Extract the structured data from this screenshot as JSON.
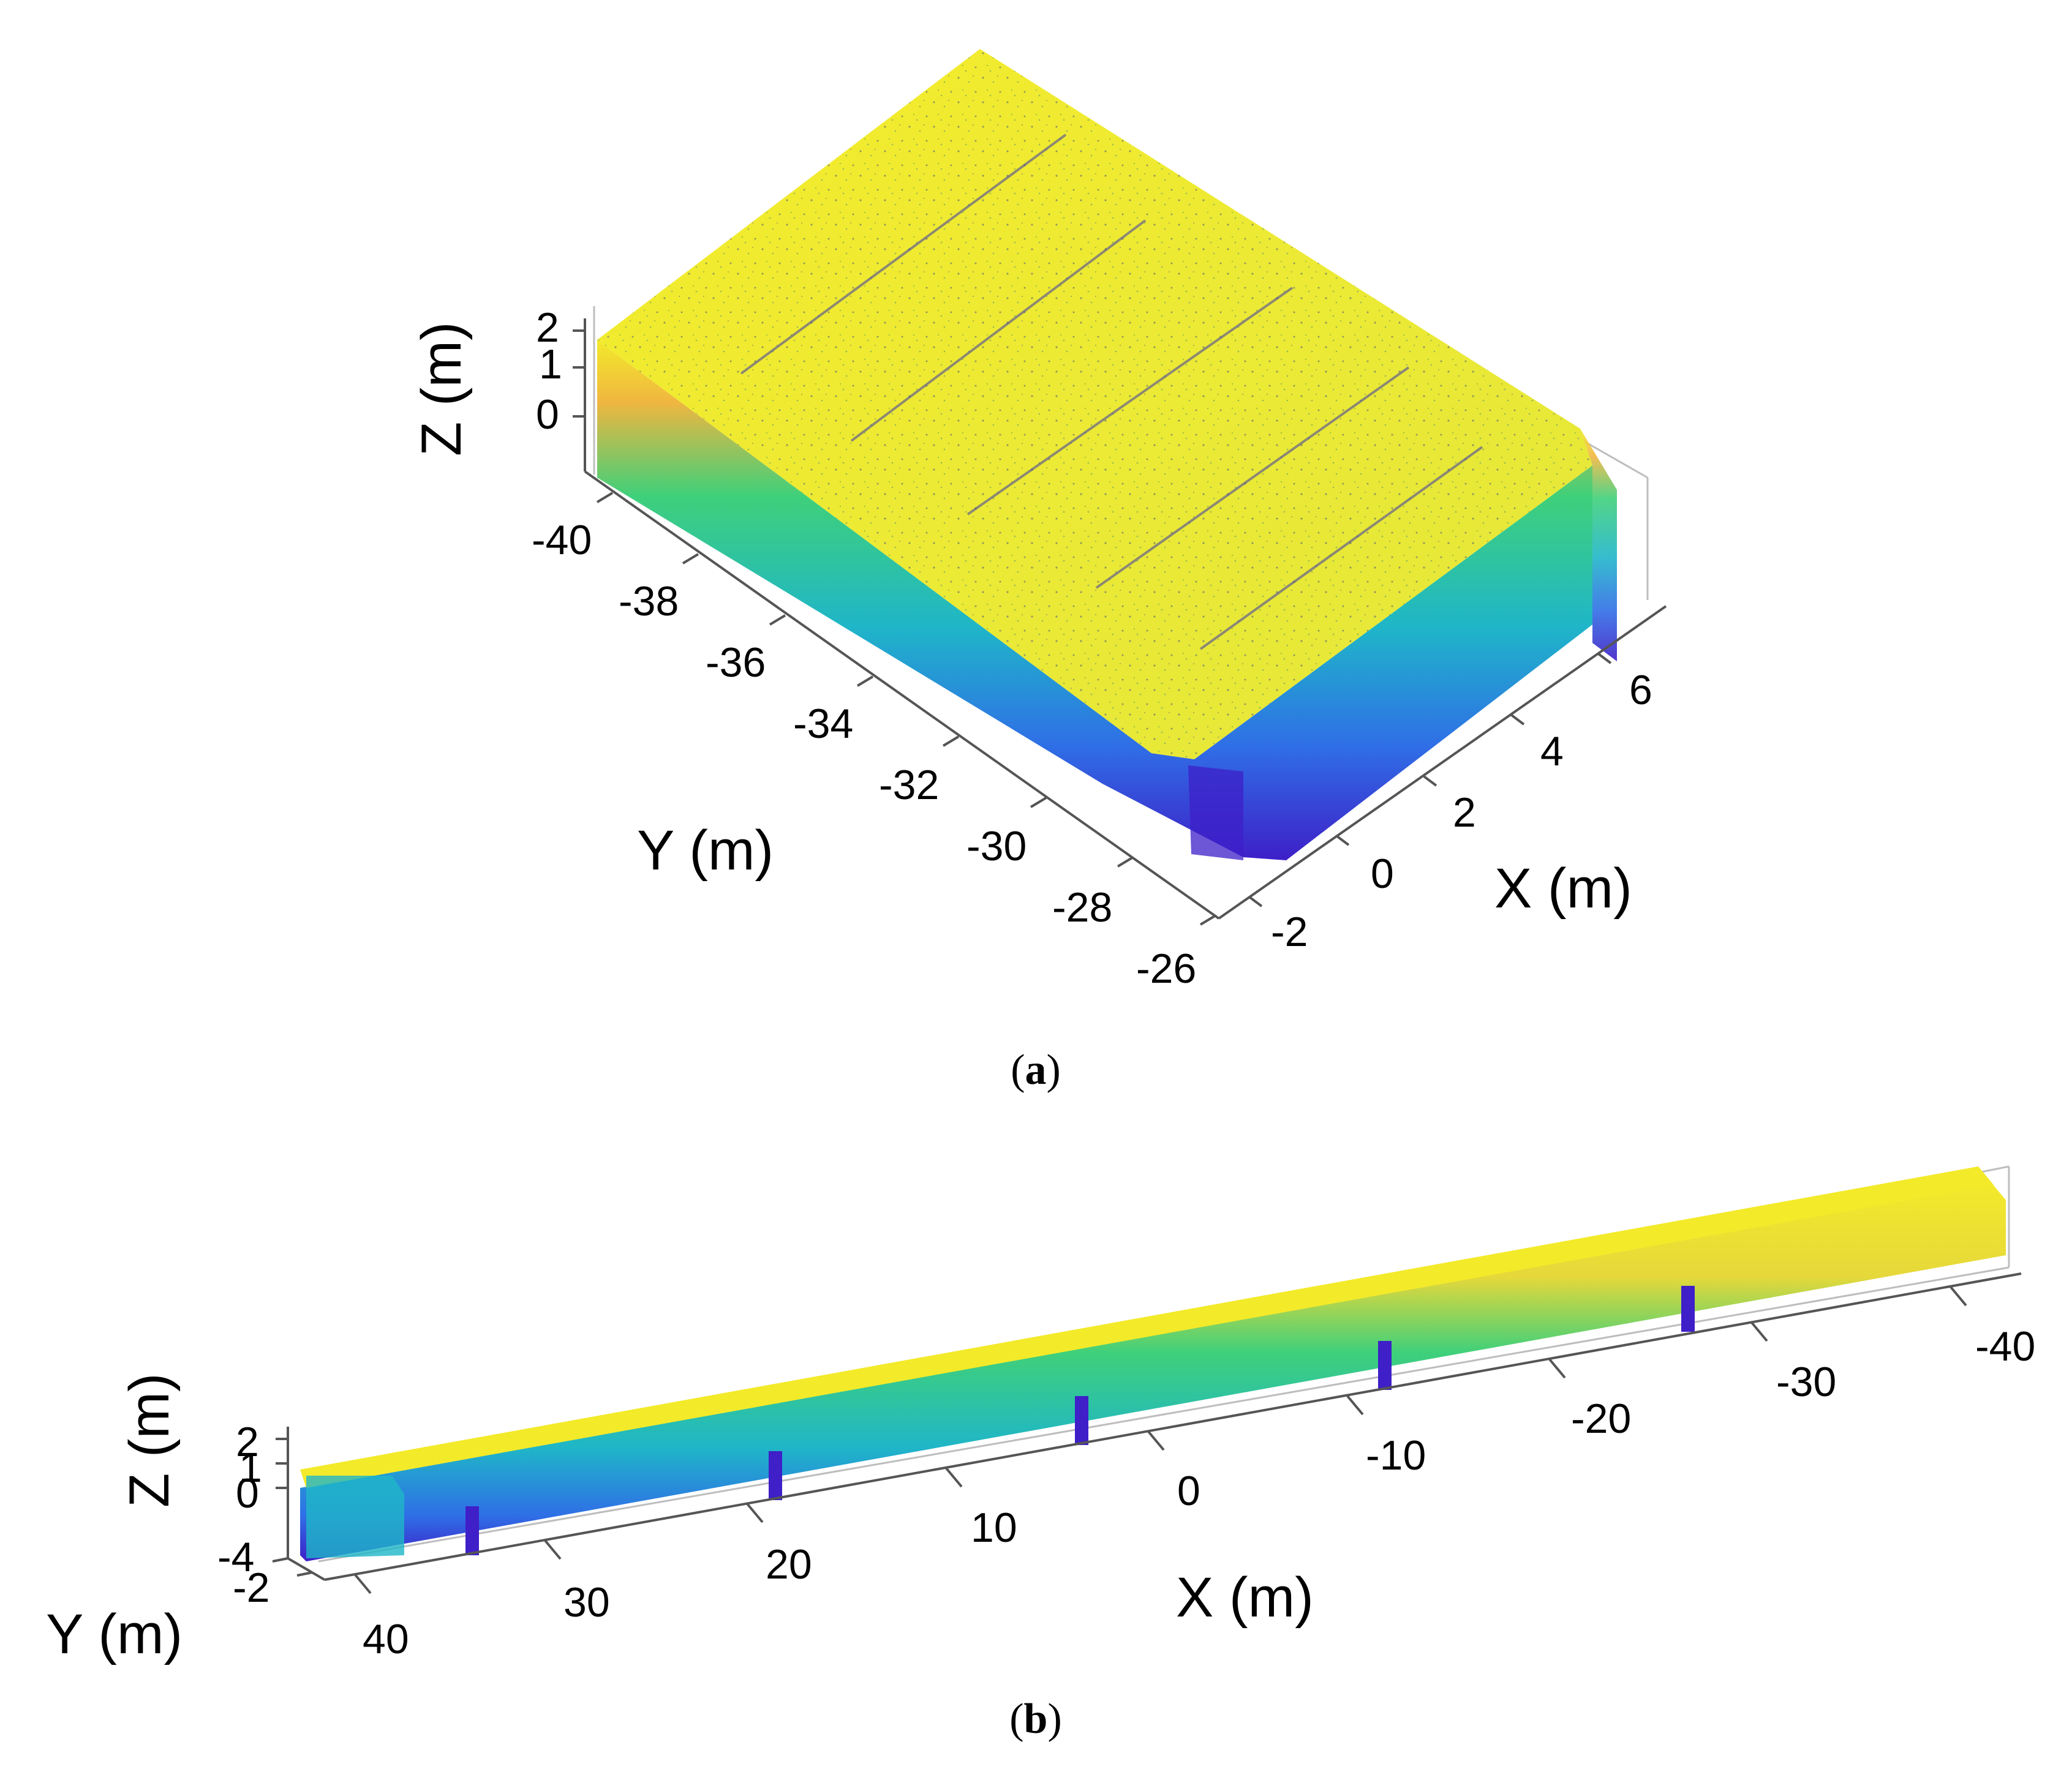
{
  "chart_data": [
    {
      "panel": "a",
      "type": "scatter",
      "subtype": "3d-point-cloud",
      "caption": {
        "open": "(",
        "label": "a",
        "close": ")"
      },
      "xlabel": "X (m)",
      "ylabel": "Y (m)",
      "zlabel": "Z (m)",
      "x_ticks": [
        "-2",
        "0",
        "2",
        "4",
        "6"
      ],
      "y_ticks": [
        "-40",
        "-38",
        "-36",
        "-34",
        "-32",
        "-30",
        "-28",
        "-26"
      ],
      "z_ticks": [
        "2",
        "1",
        "0"
      ],
      "xlim": [
        -2.5,
        7.5
      ],
      "ylim": [
        -41,
        -25.5
      ],
      "zlim": [
        -1.5,
        2
      ],
      "colormap": [
        "#3e1fc8",
        "#2f6fe6",
        "#1fb6c8",
        "#3fd07a",
        "#b8d83a",
        "#f3ea2a"
      ],
      "colormap_by": "Z"
    },
    {
      "panel": "b",
      "type": "scatter",
      "subtype": "3d-point-cloud",
      "caption": {
        "open": "(",
        "label": "b",
        "close": ")"
      },
      "xlabel": "X (m)",
      "ylabel": "Y (m)",
      "zlabel": "Z (m)",
      "x_ticks": [
        "40",
        "30",
        "20",
        "10",
        "0",
        "-10",
        "-20",
        "-30",
        "-40"
      ],
      "y_ticks": [
        "-4",
        "-2"
      ],
      "z_ticks": [
        "2",
        "1",
        "0"
      ],
      "xlim": [
        45,
        -45
      ],
      "ylim": [
        -5,
        -1
      ],
      "zlim": [
        -1.5,
        2
      ],
      "colormap": [
        "#3e1fc8",
        "#2f6fe6",
        "#1fb6c8",
        "#3fd07a",
        "#b8d83a",
        "#f3ea2a"
      ],
      "colormap_by": "Z"
    }
  ]
}
